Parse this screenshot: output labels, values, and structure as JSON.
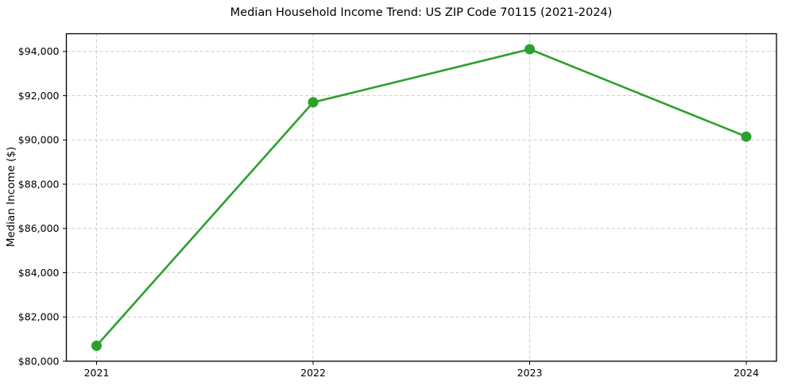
{
  "figure": {
    "background": "#ffffff"
  },
  "chart_data": {
    "type": "line",
    "title": "Median Household Income Trend: US ZIP Code 70115 (2021-2024)",
    "xlabel": "",
    "ylabel": "Median Income ($)",
    "categories": [
      "2021",
      "2022",
      "2023",
      "2024"
    ],
    "values": [
      80700,
      91700,
      94100,
      90150
    ],
    "ylim": [
      80000,
      94800
    ],
    "y_ticks": [
      80000,
      82000,
      84000,
      86000,
      88000,
      90000,
      92000,
      94000
    ],
    "y_tick_labels": [
      "$80,000",
      "$82,000",
      "$84,000",
      "$86,000",
      "$88,000",
      "$90,000",
      "$92,000",
      "$94,000"
    ],
    "grid": true,
    "grid_linestyle": "dashed",
    "legend_position": "none",
    "marker": "circle",
    "colors": {
      "line": "#2ca02c",
      "marker": "#2ca02c",
      "grid": "#cccccc",
      "spine": "#000000",
      "text": "#000000"
    }
  }
}
